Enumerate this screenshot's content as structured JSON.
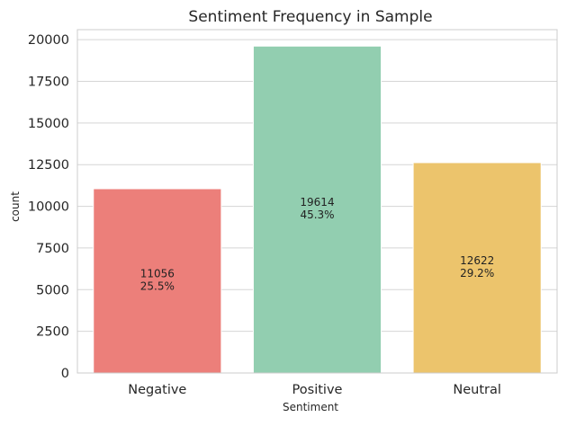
{
  "chart_data": {
    "type": "bar",
    "title": "Sentiment Frequency in Sample",
    "xlabel": "Sentiment",
    "ylabel": "count",
    "categories": [
      "Negative",
      "Positive",
      "Neutral"
    ],
    "values": [
      11056,
      19614,
      12622
    ],
    "data_labels": [
      {
        "count": "11056",
        "percent": "25.5%"
      },
      {
        "count": "19614",
        "percent": "45.3%"
      },
      {
        "count": "12622",
        "percent": "29.2%"
      }
    ],
    "colors": [
      "#ec7f7a",
      "#92ceb0",
      "#ecc46c"
    ],
    "yticks": [
      "0",
      "2500",
      "5000",
      "7500",
      "10000",
      "12500",
      "15000",
      "17500",
      "20000"
    ],
    "ylim": [
      0,
      20600
    ],
    "grid": "horizontal"
  }
}
